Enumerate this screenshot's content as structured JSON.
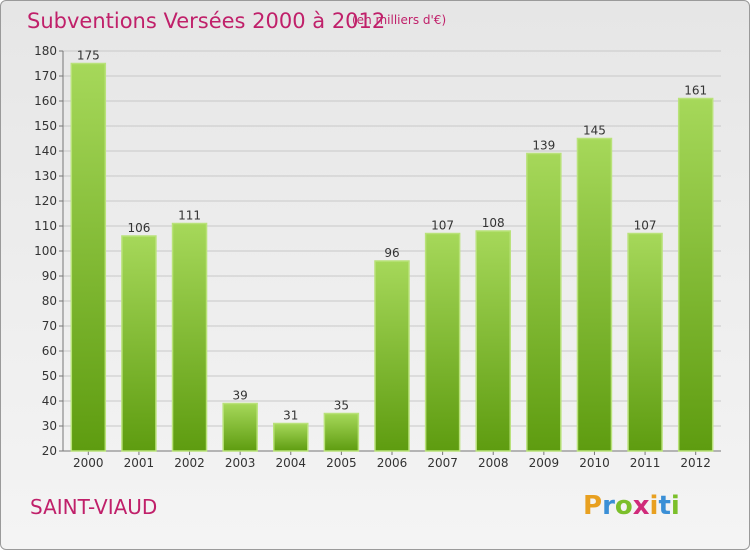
{
  "header": {
    "title": "Subventions Versées 2000 à 2012",
    "subtitle": "(en milliers d'€)"
  },
  "footer": {
    "commune": "SAINT-VIAUD",
    "logo": {
      "letters": [
        "P",
        "r",
        "o",
        "x",
        "i",
        "t",
        "i"
      ],
      "colors": [
        "#e8a020",
        "#3a8fd6",
        "#7bbf2a",
        "#d02a7a",
        "#e8a020",
        "#3a8fd6",
        "#7bbf2a"
      ]
    }
  },
  "colors": {
    "bar_top": "#a6d85a",
    "bar_bottom": "#5e9c10",
    "bar_edge": "#b9e27a",
    "grid": "#c8c8c8",
    "text_accent": "#c0206a"
  },
  "chart_data": {
    "type": "bar",
    "title": "Subventions Versées 2000 à 2012",
    "subtitle": "(en milliers d'€)",
    "categories": [
      "2000",
      "2001",
      "2002",
      "2003",
      "2004",
      "2005",
      "2006",
      "2007",
      "2008",
      "2009",
      "2010",
      "2011",
      "2012"
    ],
    "values": [
      175,
      106,
      111,
      39,
      31,
      35,
      96,
      107,
      108,
      139,
      145,
      107,
      161
    ],
    "ylim": [
      20,
      180
    ],
    "yticks": [
      20,
      30,
      40,
      50,
      60,
      70,
      80,
      90,
      100,
      110,
      120,
      130,
      140,
      150,
      160,
      170,
      180
    ],
    "grid": true,
    "data_labels": true
  }
}
